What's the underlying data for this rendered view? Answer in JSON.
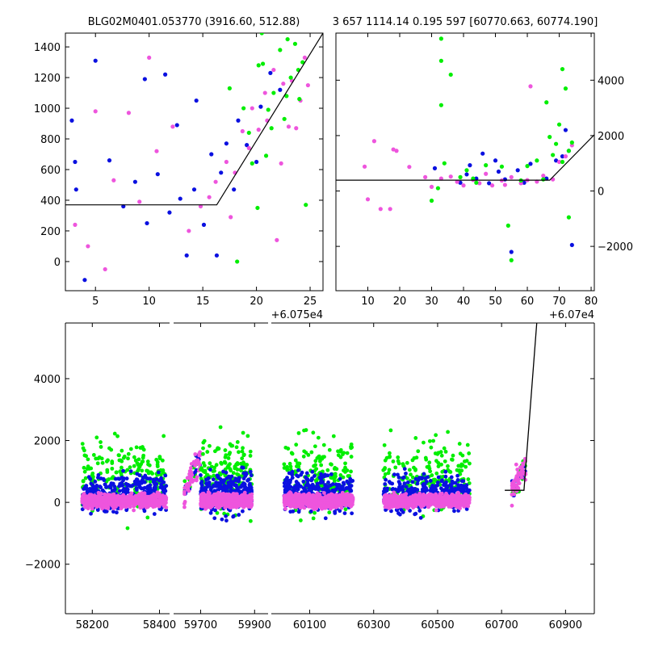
{
  "figure": {
    "title_left": "BLG02M0401.053770 (3916.60, 512.88)",
    "title_right": "3 657 1114.14 0.195 597 [60770.663, 60774.190]"
  },
  "colors": {
    "green": "#00ee00",
    "blue": "#0a10e0",
    "magenta": "#ee55dd",
    "model": "#000000"
  },
  "chart_data": [
    {
      "type": "scatter",
      "offset_label": "+6.075e4",
      "xlim": [
        2.2,
        26.2
      ],
      "ylim": [
        -190,
        1490
      ],
      "xticks": [
        5,
        10,
        15,
        20,
        25
      ],
      "yticks": [
        0,
        200,
        400,
        600,
        800,
        1000,
        1200,
        1400
      ],
      "model_line": [
        [
          2.2,
          370
        ],
        [
          16.3,
          370
        ],
        [
          26.2,
          1490
        ]
      ],
      "series": [
        {
          "color": "blue",
          "points": [
            [
              2.8,
              920
            ],
            [
              3.1,
              650
            ],
            [
              4,
              -120
            ],
            [
              5,
              1310
            ],
            [
              9.6,
              1190
            ],
            [
              11.5,
              1220
            ],
            [
              12.6,
              890
            ],
            [
              13.5,
              40
            ],
            [
              14.4,
              1050
            ],
            [
              16.3,
              40
            ],
            [
              3.2,
              470
            ],
            [
              6.3,
              660
            ],
            [
              7.6,
              360
            ],
            [
              8.7,
              520
            ],
            [
              9.8,
              250
            ],
            [
              10.8,
              570
            ],
            [
              11.9,
              320
            ],
            [
              12.9,
              410
            ],
            [
              14.2,
              470
            ],
            [
              15.1,
              240
            ],
            [
              15.8,
              700
            ],
            [
              16.7,
              580
            ],
            [
              17.2,
              770
            ],
            [
              18.3,
              920
            ],
            [
              19.1,
              760
            ],
            [
              20.4,
              1010
            ],
            [
              21.3,
              1230
            ],
            [
              22.2,
              1120
            ],
            [
              17.9,
              470
            ],
            [
              20.0,
              650
            ]
          ]
        },
        {
          "color": "magenta",
          "points": [
            [
              10,
              1330
            ],
            [
              5,
              980
            ],
            [
              3.1,
              240
            ],
            [
              4.3,
              100
            ],
            [
              5.9,
              -50
            ],
            [
              8.1,
              970
            ],
            [
              10.7,
              720
            ],
            [
              12.2,
              880
            ],
            [
              13.7,
              200
            ],
            [
              15.6,
              420
            ],
            [
              17.2,
              650
            ],
            [
              18.7,
              850
            ],
            [
              19.6,
              1000
            ],
            [
              20.8,
              1100
            ],
            [
              21.6,
              1250
            ],
            [
              22.5,
              1160
            ],
            [
              23.3,
              1180
            ],
            [
              24.1,
              1050
            ],
            [
              24.8,
              1150
            ],
            [
              17.6,
              290
            ],
            [
              19.3,
              740
            ],
            [
              21.0,
              920
            ],
            [
              22.3,
              640
            ],
            [
              23.7,
              870
            ],
            [
              24.5,
              1330
            ],
            [
              6.7,
              530
            ],
            [
              9.1,
              390
            ],
            [
              14.8,
              360
            ],
            [
              16.2,
              520
            ],
            [
              18.0,
              580
            ],
            [
              20.2,
              860
            ],
            [
              21.9,
              140
            ],
            [
              23.0,
              880
            ]
          ]
        },
        {
          "color": "green",
          "points": [
            [
              18.8,
              1000
            ],
            [
              20.2,
              1280
            ],
            [
              20.6,
              1290
            ],
            [
              20.9,
              690
            ],
            [
              21.4,
              870
            ],
            [
              22.2,
              1380
            ],
            [
              22.9,
              1450
            ],
            [
              23.6,
              1420
            ],
            [
              24.3,
              1300
            ],
            [
              23.2,
              1200
            ],
            [
              24.0,
              1060
            ],
            [
              19.6,
              640
            ],
            [
              20.1,
              350
            ],
            [
              21.6,
              1100
            ],
            [
              22.6,
              930
            ],
            [
              24.6,
              370
            ],
            [
              19.3,
              840
            ],
            [
              21.1,
              990
            ],
            [
              23.9,
              1250
            ],
            [
              17.5,
              1130
            ],
            [
              18.2,
              0
            ],
            [
              22.8,
              1080
            ],
            [
              20.5,
              1490
            ]
          ]
        }
      ]
    },
    {
      "type": "scatter",
      "offset_label": "+6.07e4",
      "xlim": [
        0,
        81
      ],
      "ylim": [
        -3600,
        5700
      ],
      "xticks": [
        10,
        20,
        30,
        40,
        50,
        60,
        70,
        80
      ],
      "yticks": [
        -2000,
        0,
        2000,
        4000
      ],
      "model_line": [
        [
          0,
          390
        ],
        [
          67,
          390
        ],
        [
          81,
          2030
        ]
      ],
      "series": [
        {
          "color": "blue",
          "points": [
            [
              31,
              820
            ],
            [
              39,
              300
            ],
            [
              41,
              600
            ],
            [
              44,
              450
            ],
            [
              46,
              1350
            ],
            [
              48,
              280
            ],
            [
              51,
              700
            ],
            [
              53,
              420
            ],
            [
              55,
              -2200
            ],
            [
              57,
              750
            ],
            [
              61,
              980
            ],
            [
              66,
              450
            ],
            [
              69,
              1100
            ],
            [
              71,
              1250
            ],
            [
              72,
              2200
            ],
            [
              73,
              1450
            ],
            [
              74,
              -1950
            ],
            [
              42,
              930
            ],
            [
              50,
              1100
            ],
            [
              59,
              300
            ]
          ]
        },
        {
          "color": "magenta",
          "points": [
            [
              9,
              880
            ],
            [
              10,
              -300
            ],
            [
              12,
              1800
            ],
            [
              14,
              -650
            ],
            [
              17,
              -650
            ],
            [
              18,
              1500
            ],
            [
              19,
              1450
            ],
            [
              23,
              870
            ],
            [
              28,
              500
            ],
            [
              30,
              150
            ],
            [
              33,
              450
            ],
            [
              36,
              520
            ],
            [
              40,
              200
            ],
            [
              43,
              400
            ],
            [
              47,
              620
            ],
            [
              49,
              200
            ],
            [
              52,
              380
            ],
            [
              55,
              500
            ],
            [
              58,
              280
            ],
            [
              61,
              3780
            ],
            [
              63,
              340
            ],
            [
              65,
              550
            ],
            [
              68,
              420
            ],
            [
              70,
              1050
            ],
            [
              72,
              1250
            ],
            [
              74,
              1650
            ],
            [
              38,
              330
            ],
            [
              45,
              280
            ],
            [
              53,
              220
            ],
            [
              60,
              390
            ]
          ]
        },
        {
          "color": "green",
          "points": [
            [
              30,
              -350
            ],
            [
              32,
              100
            ],
            [
              33,
              5500
            ],
            [
              33,
              4700
            ],
            [
              34,
              1000
            ],
            [
              36,
              4200
            ],
            [
              39,
              500
            ],
            [
              41,
              750
            ],
            [
              44,
              300
            ],
            [
              47,
              930
            ],
            [
              52,
              880
            ],
            [
              54,
              -1250
            ],
            [
              55,
              -2500
            ],
            [
              58,
              380
            ],
            [
              60,
              900
            ],
            [
              63,
              1100
            ],
            [
              65,
              420
            ],
            [
              66,
              3200
            ],
            [
              68,
              1300
            ],
            [
              69,
              1700
            ],
            [
              70,
              2400
            ],
            [
              71,
              4400
            ],
            [
              71,
              1050
            ],
            [
              72,
              3700
            ],
            [
              73,
              -950
            ],
            [
              73,
              1450
            ],
            [
              74,
              1750
            ],
            [
              33,
              3100
            ],
            [
              43,
              450
            ],
            [
              67,
              1950
            ]
          ]
        }
      ]
    },
    {
      "type": "scatter",
      "ylim": [
        -3600,
        5800
      ],
      "yticks": [
        -2000,
        0,
        2000,
        4000
      ],
      "segments": [
        {
          "xlim": [
            58120,
            58430
          ],
          "xticks": [
            58200,
            58400
          ],
          "clusters": [
            [
              58170,
              58420
            ]
          ]
        },
        {
          "xlim": [
            59600,
            59950
          ],
          "xticks": [
            59700,
            59900
          ],
          "clusters": [
            [
              59640,
              59700
            ],
            [
              59700,
              59890
            ]
          ]
        },
        {
          "xlim": [
            59980,
            60990
          ],
          "xticks": [
            60100,
            60300,
            60500,
            60700,
            60900
          ],
          "clusters": [
            [
              60020,
              60235
            ],
            [
              60330,
              60600
            ],
            [
              60730,
              60775
            ]
          ]
        }
      ],
      "model_line": [
        [
          60710,
          390
        ],
        [
          60770,
          390
        ],
        [
          60810,
          5800
        ]
      ],
      "series_colors": [
        "blue",
        "green",
        "magenta"
      ]
    }
  ]
}
